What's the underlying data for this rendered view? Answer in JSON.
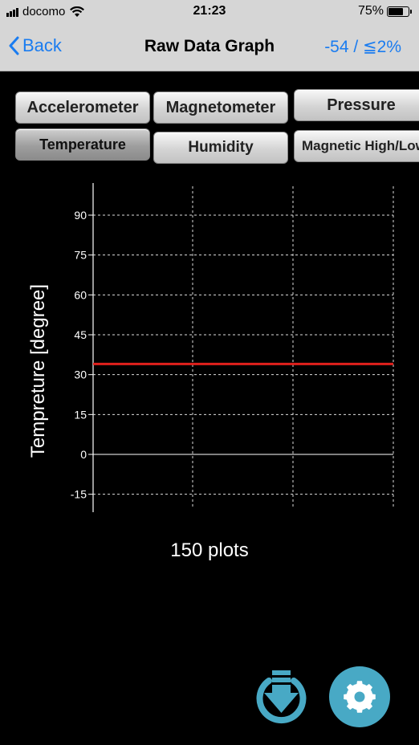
{
  "status": {
    "carrier": "docomo",
    "time": "21:23",
    "battery": "75%",
    "battery_level": 0.75
  },
  "nav": {
    "back_label": "Back",
    "title": "Raw Data Graph",
    "right_label": "-54 / ≦2%"
  },
  "tabs": [
    {
      "label": "Accelerometer",
      "active": false
    },
    {
      "label": "Magnetometer",
      "active": false
    },
    {
      "label": "Pressure",
      "active": false
    },
    {
      "label": "Temperature",
      "active": true
    },
    {
      "label": "Humidity",
      "active": false
    },
    {
      "label": "Magnetic High/Low",
      "active": false
    }
  ],
  "chart_data": {
    "type": "line",
    "ylabel": "Tempreture [degree]",
    "xlabel": "",
    "y_ticks": [
      "90",
      "75",
      "60",
      "45",
      "30",
      "15",
      "0",
      "-15"
    ],
    "ylim": [
      -20,
      100
    ],
    "grid": true,
    "series": [
      {
        "color": "#e0201c",
        "values": [
          34,
          34
        ]
      }
    ]
  },
  "plots_label": "150 plots",
  "icons": {
    "download": "download-icon",
    "settings": "gear-icon"
  },
  "colors": {
    "accent": "#1a7cf0",
    "series": "#e0201c",
    "button": "#48a9c5"
  }
}
